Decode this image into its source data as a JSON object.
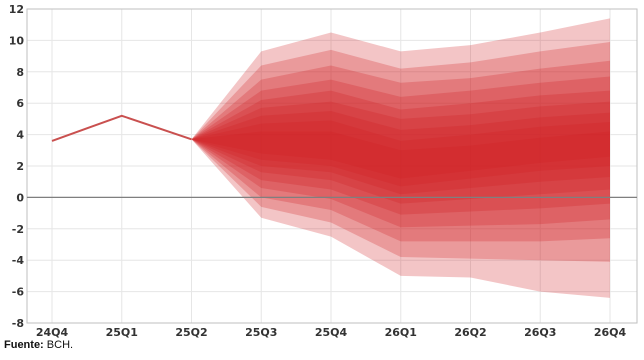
{
  "chart_data": {
    "type": "area",
    "title": "",
    "xlabel": "",
    "ylabel": "",
    "categories": [
      "24Q4",
      "25Q1",
      "25Q2",
      "25Q3",
      "25Q4",
      "26Q1",
      "26Q2",
      "26Q3",
      "26Q4"
    ],
    "ylim": [
      -8,
      12
    ],
    "yticks": [
      -8,
      -6,
      -4,
      -2,
      0,
      2,
      4,
      6,
      8,
      10,
      12
    ],
    "grid": true,
    "legend": "none",
    "history": {
      "name": "",
      "values": [
        3.6,
        5.2,
        3.7
      ]
    },
    "fan_start_index": 2,
    "fan_bands_lower": [
      [
        3.7,
        -1.3,
        -2.5,
        -5.0,
        -5.1,
        -6.0,
        -6.4
      ],
      [
        3.7,
        -0.6,
        -1.6,
        -3.8,
        -3.9,
        -4.0,
        -4.1
      ],
      [
        3.7,
        0.0,
        -0.8,
        -2.8,
        -2.8,
        -2.8,
        -2.6
      ],
      [
        3.7,
        0.6,
        -0.1,
        -1.9,
        -1.8,
        -1.7,
        -1.4
      ],
      [
        3.7,
        1.1,
        0.5,
        -1.1,
        -0.9,
        -0.7,
        -0.4
      ],
      [
        3.7,
        1.6,
        1.1,
        -0.4,
        -0.1,
        0.2,
        0.5
      ],
      [
        3.7,
        2.0,
        1.6,
        0.2,
        0.6,
        1.0,
        1.3
      ],
      [
        3.7,
        2.4,
        2.0,
        0.7,
        1.2,
        1.7,
        2.0
      ],
      [
        3.7,
        2.8,
        2.4,
        1.2,
        1.7,
        2.2,
        2.6
      ]
    ],
    "fan_bands_upper": [
      [
        3.7,
        9.3,
        10.5,
        9.3,
        9.7,
        10.5,
        11.4
      ],
      [
        3.7,
        8.4,
        9.4,
        8.2,
        8.6,
        9.3,
        9.9
      ],
      [
        3.7,
        7.5,
        8.4,
        7.3,
        7.6,
        8.2,
        8.7
      ],
      [
        3.7,
        6.8,
        7.5,
        6.4,
        6.8,
        7.3,
        7.7
      ],
      [
        3.7,
        6.2,
        6.8,
        5.6,
        6.0,
        6.5,
        6.8
      ],
      [
        3.7,
        5.7,
        6.1,
        5.0,
        5.3,
        5.8,
        6.1
      ],
      [
        3.7,
        5.2,
        5.5,
        4.3,
        4.6,
        5.1,
        5.4
      ],
      [
        3.7,
        4.7,
        4.9,
        3.6,
        4.0,
        4.5,
        4.8
      ],
      [
        3.7,
        4.2,
        4.2,
        3.0,
        3.3,
        3.8,
        4.2
      ]
    ],
    "colors": {
      "history_line": "#c9504f",
      "fan_base": "#d21f24",
      "zero_line": "#7f7f7f",
      "grid": "#e6e6e6",
      "axis": "#bfbfbf"
    }
  },
  "source": {
    "label": "Fuente:",
    "text": " BCH."
  }
}
